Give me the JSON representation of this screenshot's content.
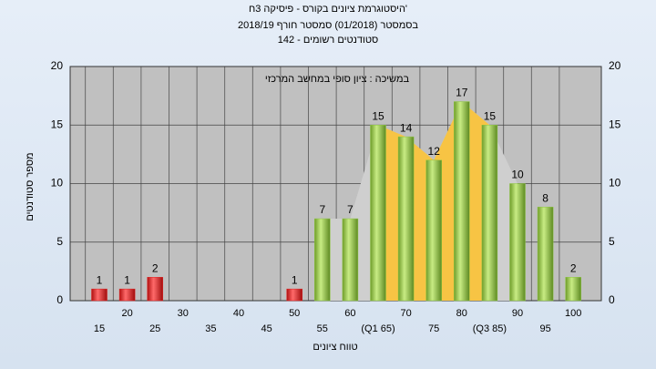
{
  "chart_data": {
    "type": "bar",
    "title": [
      "היסטוגרמת ציונים בקורס - פיסיקה 3ח'",
      "בסמסטר (01/2018) סמסטר חורף 2018/19",
      "סטודנטים רשומים - 142"
    ],
    "subtitle": "במשיכה : ציון סופי במחשב המרכזי",
    "x_label": "טווח ציונים",
    "y_label": "מספר סטודנטים",
    "categories": [
      "15",
      "20",
      "25",
      "30",
      "35",
      "40",
      "45",
      "50",
      "55",
      "60",
      "(Q1 65)",
      "70",
      "75",
      "80",
      "(Q3 85)",
      "90",
      "95",
      "100"
    ],
    "values": [
      1,
      1,
      2,
      0,
      0,
      0,
      0,
      1,
      7,
      7,
      15,
      14,
      12,
      17,
      15,
      10,
      8,
      2
    ],
    "colors": [
      "#e02020",
      "#e02020",
      "#e02020",
      "#e02020",
      "#e02020",
      "#e02020",
      "#e02020",
      "#e02020",
      "#8cc63f",
      "#8cc63f",
      "#8cc63f",
      "#8cc63f",
      "#8cc63f",
      "#8cc63f",
      "#8cc63f",
      "#8cc63f",
      "#8cc63f",
      "#8cc63f"
    ],
    "ylim": [
      0,
      20
    ],
    "yticks": [
      0,
      5,
      10,
      15,
      20
    ],
    "grid": true
  }
}
